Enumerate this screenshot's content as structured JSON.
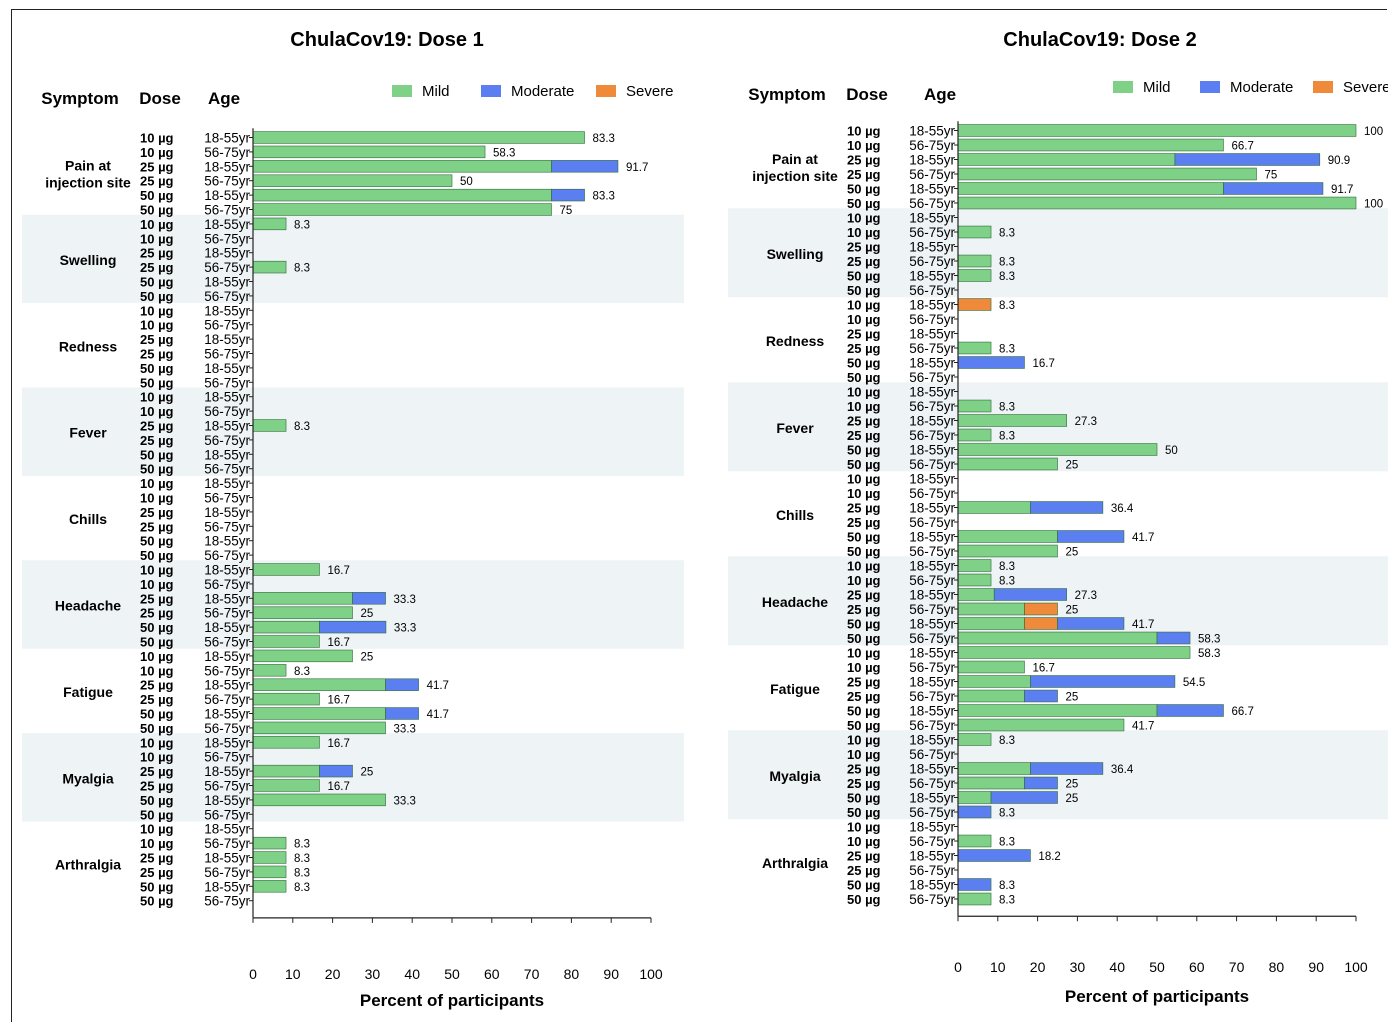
{
  "axis_labels": {
    "symptom": "Symptom",
    "dose": "Dose",
    "age": "Age",
    "xlabel": "Percent of participants"
  },
  "legend": [
    {
      "key": "mild",
      "label": "Mild",
      "color": "#7ed186"
    },
    {
      "key": "moderate",
      "label": "Moderate",
      "color": "#5b7ff0"
    },
    {
      "key": "severe",
      "label": "Severe",
      "color": "#ef8a3a"
    }
  ],
  "colors": {
    "band": "#eef3f6",
    "bar_stroke": "#2f6b3a"
  },
  "groups": [
    {
      "dose": "10 µg",
      "age": "18-55yr"
    },
    {
      "dose": "10 µg",
      "age": "56-75yr"
    },
    {
      "dose": "25 µg",
      "age": "18-55yr"
    },
    {
      "dose": "25 µg",
      "age": "56-75yr"
    },
    {
      "dose": "50 µg",
      "age": "18-55yr"
    },
    {
      "dose": "50 µg",
      "age": "56-75yr"
    }
  ],
  "chart_data": [
    {
      "type": "bar",
      "orientation": "horizontal",
      "stacked": true,
      "title": "ChulaCov19: Dose 1",
      "xlabel": "Percent of participants",
      "xlim": [
        0,
        100
      ],
      "xticks": [
        0,
        10,
        20,
        30,
        40,
        50,
        60,
        70,
        80,
        90,
        100
      ],
      "legend_position": "top-right",
      "series_order": [
        "mild",
        "moderate",
        "severe"
      ],
      "symptoms": [
        {
          "name": "Pain at\ninjection site",
          "shaded": false,
          "rows": [
            {
              "mild": 83.3,
              "moderate": 0,
              "severe": 0,
              "label": "83.3"
            },
            {
              "mild": 58.3,
              "moderate": 0,
              "severe": 0,
              "label": "58.3"
            },
            {
              "mild": 75,
              "moderate": 16.7,
              "severe": 0,
              "label": "91.7"
            },
            {
              "mild": 50,
              "moderate": 0,
              "severe": 0,
              "label": "50"
            },
            {
              "mild": 75,
              "moderate": 8.3,
              "severe": 0,
              "label": "83.3"
            },
            {
              "mild": 75,
              "moderate": 0,
              "severe": 0,
              "label": "75"
            }
          ]
        },
        {
          "name": "Swelling",
          "shaded": true,
          "rows": [
            {
              "mild": 8.3,
              "moderate": 0,
              "severe": 0,
              "label": "8.3"
            },
            {
              "mild": 0,
              "moderate": 0,
              "severe": 0,
              "label": ""
            },
            {
              "mild": 0,
              "moderate": 0,
              "severe": 0,
              "label": ""
            },
            {
              "mild": 8.3,
              "moderate": 0,
              "severe": 0,
              "label": "8.3"
            },
            {
              "mild": 0,
              "moderate": 0,
              "severe": 0,
              "label": ""
            },
            {
              "mild": 0,
              "moderate": 0,
              "severe": 0,
              "label": ""
            }
          ]
        },
        {
          "name": "Redness",
          "shaded": false,
          "rows": [
            {
              "mild": 0,
              "moderate": 0,
              "severe": 0,
              "label": ""
            },
            {
              "mild": 0,
              "moderate": 0,
              "severe": 0,
              "label": ""
            },
            {
              "mild": 0,
              "moderate": 0,
              "severe": 0,
              "label": ""
            },
            {
              "mild": 0,
              "moderate": 0,
              "severe": 0,
              "label": ""
            },
            {
              "mild": 0,
              "moderate": 0,
              "severe": 0,
              "label": ""
            },
            {
              "mild": 0,
              "moderate": 0,
              "severe": 0,
              "label": ""
            }
          ]
        },
        {
          "name": "Fever",
          "shaded": true,
          "rows": [
            {
              "mild": 0,
              "moderate": 0,
              "severe": 0,
              "label": ""
            },
            {
              "mild": 0,
              "moderate": 0,
              "severe": 0,
              "label": ""
            },
            {
              "mild": 8.3,
              "moderate": 0,
              "severe": 0,
              "label": "8.3"
            },
            {
              "mild": 0,
              "moderate": 0,
              "severe": 0,
              "label": ""
            },
            {
              "mild": 0,
              "moderate": 0,
              "severe": 0,
              "label": ""
            },
            {
              "mild": 0,
              "moderate": 0,
              "severe": 0,
              "label": ""
            }
          ]
        },
        {
          "name": "Chills",
          "shaded": false,
          "rows": [
            {
              "mild": 0,
              "moderate": 0,
              "severe": 0,
              "label": ""
            },
            {
              "mild": 0,
              "moderate": 0,
              "severe": 0,
              "label": ""
            },
            {
              "mild": 0,
              "moderate": 0,
              "severe": 0,
              "label": ""
            },
            {
              "mild": 0,
              "moderate": 0,
              "severe": 0,
              "label": ""
            },
            {
              "mild": 0,
              "moderate": 0,
              "severe": 0,
              "label": ""
            },
            {
              "mild": 0,
              "moderate": 0,
              "severe": 0,
              "label": ""
            }
          ]
        },
        {
          "name": "Headache",
          "shaded": true,
          "rows": [
            {
              "mild": 16.7,
              "moderate": 0,
              "severe": 0,
              "label": "16.7"
            },
            {
              "mild": 0,
              "moderate": 0,
              "severe": 0,
              "label": ""
            },
            {
              "mild": 25,
              "moderate": 8.3,
              "severe": 0,
              "label": "33.3"
            },
            {
              "mild": 25,
              "moderate": 0,
              "severe": 0,
              "label": "25"
            },
            {
              "mild": 16.7,
              "moderate": 16.7,
              "severe": 0,
              "label": "33.3"
            },
            {
              "mild": 16.7,
              "moderate": 0,
              "severe": 0,
              "label": "16.7"
            }
          ]
        },
        {
          "name": "Fatigue",
          "shaded": false,
          "rows": [
            {
              "mild": 25,
              "moderate": 0,
              "severe": 0,
              "label": "25"
            },
            {
              "mild": 8.3,
              "moderate": 0,
              "severe": 0,
              "label": "8.3"
            },
            {
              "mild": 33.3,
              "moderate": 8.3,
              "severe": 0,
              "label": "41.7"
            },
            {
              "mild": 16.7,
              "moderate": 0,
              "severe": 0,
              "label": "16.7"
            },
            {
              "mild": 33.3,
              "moderate": 8.3,
              "severe": 0,
              "label": "41.7"
            },
            {
              "mild": 33.3,
              "moderate": 0,
              "severe": 0,
              "label": "33.3"
            }
          ]
        },
        {
          "name": "Myalgia",
          "shaded": true,
          "rows": [
            {
              "mild": 16.7,
              "moderate": 0,
              "severe": 0,
              "label": "16.7"
            },
            {
              "mild": 0,
              "moderate": 0,
              "severe": 0,
              "label": ""
            },
            {
              "mild": 16.7,
              "moderate": 8.3,
              "severe": 0,
              "label": "25"
            },
            {
              "mild": 16.7,
              "moderate": 0,
              "severe": 0,
              "label": "16.7"
            },
            {
              "mild": 33.3,
              "moderate": 0,
              "severe": 0,
              "label": "33.3"
            },
            {
              "mild": 0,
              "moderate": 0,
              "severe": 0,
              "label": ""
            }
          ]
        },
        {
          "name": "Arthralgia",
          "shaded": false,
          "rows": [
            {
              "mild": 0,
              "moderate": 0,
              "severe": 0,
              "label": ""
            },
            {
              "mild": 8.3,
              "moderate": 0,
              "severe": 0,
              "label": "8.3"
            },
            {
              "mild": 8.3,
              "moderate": 0,
              "severe": 0,
              "label": "8.3"
            },
            {
              "mild": 8.3,
              "moderate": 0,
              "severe": 0,
              "label": "8.3"
            },
            {
              "mild": 8.3,
              "moderate": 0,
              "severe": 0,
              "label": "8.3"
            },
            {
              "mild": 0,
              "moderate": 0,
              "severe": 0,
              "label": ""
            }
          ]
        }
      ]
    },
    {
      "type": "bar",
      "orientation": "horizontal",
      "stacked": true,
      "title": "ChulaCov19: Dose 2",
      "xlabel": "Percent of participants",
      "xlim": [
        0,
        100
      ],
      "xticks": [
        0,
        10,
        20,
        30,
        40,
        50,
        60,
        70,
        80,
        90,
        100
      ],
      "legend_position": "top-right",
      "series_order": [
        "mild",
        "severe",
        "moderate"
      ],
      "symptoms": [
        {
          "name": "Pain at\ninjection site",
          "shaded": false,
          "rows": [
            {
              "mild": 100,
              "moderate": 0,
              "severe": 0,
              "label": "100"
            },
            {
              "mild": 66.7,
              "moderate": 0,
              "severe": 0,
              "label": "66.7"
            },
            {
              "mild": 54.5,
              "moderate": 36.4,
              "severe": 0,
              "label": "90.9"
            },
            {
              "mild": 75,
              "moderate": 0,
              "severe": 0,
              "label": "75"
            },
            {
              "mild": 66.7,
              "moderate": 25,
              "severe": 0,
              "label": "91.7"
            },
            {
              "mild": 100,
              "moderate": 0,
              "severe": 0,
              "label": "100"
            }
          ]
        },
        {
          "name": "Swelling",
          "shaded": true,
          "rows": [
            {
              "mild": 0,
              "moderate": 0,
              "severe": 0,
              "label": ""
            },
            {
              "mild": 8.3,
              "moderate": 0,
              "severe": 0,
              "label": "8.3"
            },
            {
              "mild": 0,
              "moderate": 0,
              "severe": 0,
              "label": ""
            },
            {
              "mild": 8.3,
              "moderate": 0,
              "severe": 0,
              "label": "8.3"
            },
            {
              "mild": 8.3,
              "moderate": 0,
              "severe": 0,
              "label": "8.3"
            },
            {
              "mild": 0,
              "moderate": 0,
              "severe": 0,
              "label": ""
            }
          ]
        },
        {
          "name": "Redness",
          "shaded": false,
          "rows": [
            {
              "mild": 0,
              "moderate": 0,
              "severe": 8.3,
              "label": "8.3"
            },
            {
              "mild": 0,
              "moderate": 0,
              "severe": 0,
              "label": ""
            },
            {
              "mild": 0,
              "moderate": 0,
              "severe": 0,
              "label": ""
            },
            {
              "mild": 8.3,
              "moderate": 0,
              "severe": 0,
              "label": "8.3"
            },
            {
              "mild": 0,
              "moderate": 16.7,
              "severe": 0,
              "label": "16.7"
            },
            {
              "mild": 0,
              "moderate": 0,
              "severe": 0,
              "label": ""
            }
          ]
        },
        {
          "name": "Fever",
          "shaded": true,
          "rows": [
            {
              "mild": 0,
              "moderate": 0,
              "severe": 0,
              "label": ""
            },
            {
              "mild": 8.3,
              "moderate": 0,
              "severe": 0,
              "label": "8.3"
            },
            {
              "mild": 27.3,
              "moderate": 0,
              "severe": 0,
              "label": "27.3"
            },
            {
              "mild": 8.3,
              "moderate": 0,
              "severe": 0,
              "label": "8.3"
            },
            {
              "mild": 50,
              "moderate": 0,
              "severe": 0,
              "label": "50"
            },
            {
              "mild": 25,
              "moderate": 0,
              "severe": 0,
              "label": "25"
            }
          ]
        },
        {
          "name": "Chills",
          "shaded": false,
          "rows": [
            {
              "mild": 0,
              "moderate": 0,
              "severe": 0,
              "label": ""
            },
            {
              "mild": 0,
              "moderate": 0,
              "severe": 0,
              "label": ""
            },
            {
              "mild": 18.2,
              "moderate": 18.2,
              "severe": 0,
              "label": "36.4"
            },
            {
              "mild": 0,
              "moderate": 0,
              "severe": 0,
              "label": ""
            },
            {
              "mild": 25,
              "moderate": 16.7,
              "severe": 0,
              "label": "41.7"
            },
            {
              "mild": 25,
              "moderate": 0,
              "severe": 0,
              "label": "25"
            }
          ]
        },
        {
          "name": "Headache",
          "shaded": true,
          "rows": [
            {
              "mild": 8.3,
              "moderate": 0,
              "severe": 0,
              "label": "8.3"
            },
            {
              "mild": 8.3,
              "moderate": 0,
              "severe": 0,
              "label": "8.3"
            },
            {
              "mild": 9.1,
              "moderate": 18.2,
              "severe": 0,
              "label": "27.3"
            },
            {
              "mild": 16.7,
              "moderate": 0,
              "severe": 8.3,
              "label": "25"
            },
            {
              "mild": 16.7,
              "moderate": 16.7,
              "severe": 8.3,
              "label": "41.7"
            },
            {
              "mild": 50,
              "moderate": 8.3,
              "severe": 0,
              "label": "58.3"
            }
          ]
        },
        {
          "name": "Fatigue",
          "shaded": false,
          "rows": [
            {
              "mild": 58.3,
              "moderate": 0,
              "severe": 0,
              "label": "58.3"
            },
            {
              "mild": 16.7,
              "moderate": 0,
              "severe": 0,
              "label": "16.7"
            },
            {
              "mild": 18.2,
              "moderate": 36.3,
              "severe": 0,
              "label": "54.5"
            },
            {
              "mild": 16.7,
              "moderate": 8.3,
              "severe": 0,
              "label": "25"
            },
            {
              "mild": 50,
              "moderate": 16.7,
              "severe": 0,
              "label": "66.7"
            },
            {
              "mild": 41.7,
              "moderate": 0,
              "severe": 0,
              "label": "41.7"
            }
          ]
        },
        {
          "name": "Myalgia",
          "shaded": true,
          "rows": [
            {
              "mild": 8.3,
              "moderate": 0,
              "severe": 0,
              "label": "8.3"
            },
            {
              "mild": 0,
              "moderate": 0,
              "severe": 0,
              "label": ""
            },
            {
              "mild": 18.2,
              "moderate": 18.2,
              "severe": 0,
              "label": "36.4"
            },
            {
              "mild": 16.7,
              "moderate": 8.3,
              "severe": 0,
              "label": "25"
            },
            {
              "mild": 8.3,
              "moderate": 16.7,
              "severe": 0,
              "label": "25"
            },
            {
              "mild": 0,
              "moderate": 8.3,
              "severe": 0,
              "label": "8.3"
            }
          ]
        },
        {
          "name": "Arthralgia",
          "shaded": false,
          "rows": [
            {
              "mild": 0,
              "moderate": 0,
              "severe": 0,
              "label": ""
            },
            {
              "mild": 8.3,
              "moderate": 0,
              "severe": 0,
              "label": "8.3"
            },
            {
              "mild": 0,
              "moderate": 18.2,
              "severe": 0,
              "label": "18.2"
            },
            {
              "mild": 0,
              "moderate": 0,
              "severe": 0,
              "label": ""
            },
            {
              "mild": 0,
              "moderate": 8.3,
              "severe": 0,
              "label": "8.3"
            },
            {
              "mild": 8.3,
              "moderate": 0,
              "severe": 0,
              "label": "8.3"
            }
          ]
        }
      ]
    }
  ]
}
